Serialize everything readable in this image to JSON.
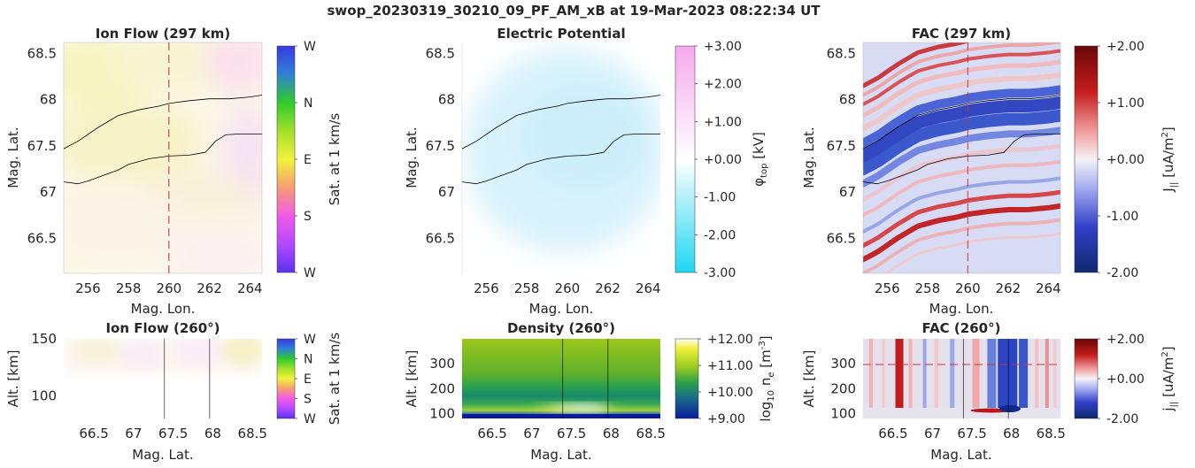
{
  "suptitle": "swop_20230319_30210_09_PF_AM_xB at 19-Mar-2023 08:22:34 UT",
  "colors": {
    "boundary_line": "#000000",
    "cut_line": "#b03040",
    "fac_pos": "#b40b0b",
    "fac_neg": "#1e3ca8",
    "potential_neg": "#20d8f0",
    "potential_pos": "#f6a8ee"
  },
  "chart_data": [
    {
      "id": "ionflow_map",
      "type": "heatmap",
      "title": "Ion Flow (297 km)",
      "xlabel": "Mag. Lon.",
      "ylabel": "Mag. Lat.",
      "xlim": [
        254.8,
        264.6
      ],
      "ylim": [
        66.12,
        68.62
      ],
      "xticks": [
        "256",
        "258",
        "260",
        "262",
        "264"
      ],
      "yticks": [
        "66.5",
        "67",
        "67.5",
        "68",
        "68.5"
      ],
      "colorbar": {
        "label": "Sat. at 1 km/s",
        "ticks": [
          "W",
          "N",
          "E",
          "S",
          "W"
        ],
        "colormap": "hsv-direction"
      },
      "cut_lon": 260,
      "boundaries": [
        {
          "x": [
            254.8,
            255.5,
            256.5,
            257.5,
            258.5,
            259.5,
            260,
            261,
            262,
            263,
            264,
            264.6
          ],
          "y": [
            67.47,
            67.55,
            67.7,
            67.83,
            67.89,
            67.93,
            67.96,
            67.99,
            68.01,
            68.01,
            68.03,
            68.05
          ]
        },
        {
          "x": [
            254.8,
            255.5,
            256,
            256.5,
            257,
            257.5,
            258,
            258.5,
            259,
            260,
            261,
            261.8,
            262.3,
            262.8,
            263.5,
            264.6
          ],
          "y": [
            67.11,
            67.09,
            67.12,
            67.16,
            67.2,
            67.24,
            67.3,
            67.33,
            67.36,
            67.39,
            67.4,
            67.43,
            67.55,
            67.62,
            67.63,
            67.63
          ]
        }
      ]
    },
    {
      "id": "potential_map",
      "type": "heatmap",
      "title": "Electric Potential",
      "xlabel": "Mag. Lon.",
      "ylabel": "Mag. Lat.",
      "xlim": [
        254.8,
        264.6
      ],
      "ylim": [
        66.12,
        68.62
      ],
      "xticks": [
        "256",
        "258",
        "260",
        "262",
        "264"
      ],
      "yticks": [
        "66.5",
        "67",
        "67.5",
        "68",
        "68.5"
      ],
      "colorbar": {
        "label": "φ_top [kV]",
        "ticks": [
          "+3.00",
          "+2.00",
          "+1.00",
          "+0.00",
          "-1.00",
          "-2.00",
          "-3.00"
        ],
        "range": [
          -3,
          3
        ]
      },
      "boundaries": "same_as_ionflow_map"
    },
    {
      "id": "fac_map",
      "type": "heatmap",
      "title": "FAC (297 km)",
      "xlabel": "Mag. Lon.",
      "ylabel": "Mag. Lat.",
      "xlim": [
        254.8,
        264.6
      ],
      "ylim": [
        66.12,
        68.62
      ],
      "xticks": [
        "256",
        "258",
        "260",
        "262",
        "264"
      ],
      "yticks": [
        "66.5",
        "67",
        "67.5",
        "68",
        "68.5"
      ],
      "colorbar": {
        "label": "J_|| [uA/m²]",
        "ticks": [
          "+2.00",
          "+1.00",
          "+0.00",
          "-1.00",
          "-2.00"
        ],
        "range": [
          -2,
          2
        ]
      },
      "cut_lon": 260,
      "boundaries": "same_as_ionflow_map"
    },
    {
      "id": "ionflow_alt",
      "type": "heatmap",
      "title": "Ion Flow (260°)",
      "xlabel": "Mag. Lat.",
      "ylabel": "Alt. [km]",
      "xlim": [
        66.12,
        68.62
      ],
      "ylim": [
        80,
        150
      ],
      "xticks": [
        "66.5",
        "67",
        "67.5",
        "68",
        "68.5"
      ],
      "yticks": [
        "100",
        "150"
      ],
      "colorbar": {
        "label": "Sat. at 1 km/s",
        "ticks": [
          "W",
          "N",
          "E",
          "S",
          "W"
        ]
      },
      "boundary_lats": [
        67.39,
        67.96
      ]
    },
    {
      "id": "density_alt",
      "type": "heatmap",
      "title": "Density (260°)",
      "xlabel": "Mag. Lat.",
      "ylabel": "Alt. [km]",
      "xlim": [
        66.12,
        68.62
      ],
      "ylim": [
        80,
        400
      ],
      "xticks": [
        "66.5",
        "67",
        "67.5",
        "68",
        "68.5"
      ],
      "yticks": [
        "100",
        "200",
        "300"
      ],
      "colorbar": {
        "label": "log₁₀ n_e [m⁻³]",
        "ticks": [
          "+12.00",
          "+11.00",
          "+10.00",
          "+9.00"
        ],
        "range": [
          9,
          12
        ]
      },
      "boundary_lats": [
        67.39,
        67.96
      ]
    },
    {
      "id": "fac_alt",
      "type": "heatmap",
      "title": "FAC (260°)",
      "xlabel": "Mag. Lat.",
      "ylabel": "Alt. [km]",
      "xlim": [
        66.12,
        68.62
      ],
      "ylim": [
        80,
        400
      ],
      "xticks": [
        "66.5",
        "67",
        "67.5",
        "68",
        "68.5"
      ],
      "yticks": [
        "100",
        "200",
        "300"
      ],
      "colorbar": {
        "label": "j_|| [uA/m²]",
        "ticks": [
          "+2.00",
          "+0.00",
          "-2.00"
        ],
        "range": [
          -2,
          2
        ]
      },
      "cut_alt": 297,
      "boundary_lats": [
        67.39,
        67.96
      ]
    }
  ]
}
